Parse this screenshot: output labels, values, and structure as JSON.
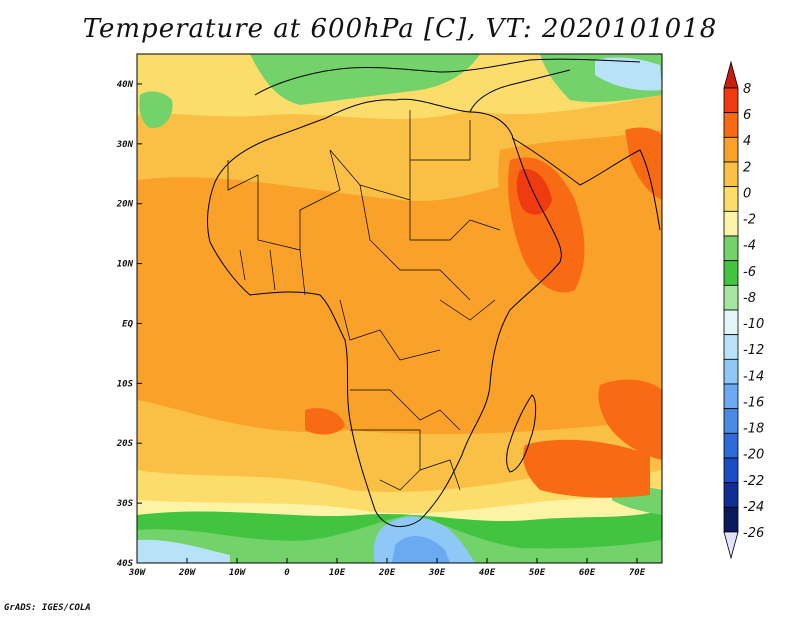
{
  "title": "Temperature at 600hPa [C], VT: 2020101018",
  "credit": "GrADS: IGES/COLA",
  "map": {
    "lon_range": [
      -30,
      75
    ],
    "lat_range": [
      -40,
      45
    ],
    "lon_ticks": [
      {
        "value": -30,
        "label": "30W"
      },
      {
        "value": -20,
        "label": "20W"
      },
      {
        "value": -10,
        "label": "10W"
      },
      {
        "value": 0,
        "label": "0"
      },
      {
        "value": 10,
        "label": "10E"
      },
      {
        "value": 20,
        "label": "20E"
      },
      {
        "value": 30,
        "label": "30E"
      },
      {
        "value": 40,
        "label": "40E"
      },
      {
        "value": 50,
        "label": "50E"
      },
      {
        "value": 60,
        "label": "60E"
      },
      {
        "value": 70,
        "label": "70E"
      }
    ],
    "lat_ticks": [
      {
        "value": 40,
        "label": "40N"
      },
      {
        "value": 30,
        "label": "30N"
      },
      {
        "value": 20,
        "label": "20N"
      },
      {
        "value": 10,
        "label": "10N"
      },
      {
        "value": 0,
        "label": "EQ"
      },
      {
        "value": -10,
        "label": "10S"
      },
      {
        "value": -20,
        "label": "20S"
      },
      {
        "value": -30,
        "label": "30S"
      },
      {
        "value": -40,
        "label": "40S"
      }
    ]
  },
  "colorbar": {
    "levels": [
      "8",
      "6",
      "4",
      "2",
      "0",
      "-2",
      "-4",
      "-6",
      "-8",
      "-10",
      "-12",
      "-14",
      "-16",
      "-18",
      "-20",
      "-22",
      "-24",
      "-26"
    ],
    "colors": [
      "#f03a10",
      "#f86a14",
      "#f9a128",
      "#fac046",
      "#fcdc6a",
      "#fdf3a6",
      "#74d26a",
      "#42c440",
      "#a6e6a0",
      "#e2f6fa",
      "#b8e2f8",
      "#8ec8f6",
      "#6aaaf0",
      "#4a8ae4",
      "#2e6ad8",
      "#1a4cc4",
      "#0e2e94",
      "#0a1a60"
    ],
    "top_color": "#c81e10",
    "bottom_color": "#e2e2fa"
  }
}
